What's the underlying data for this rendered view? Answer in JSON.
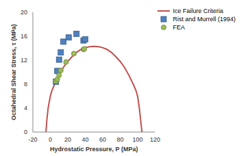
{
  "chart_data": {
    "type": "scatter",
    "x_label": "Hydrostatic Pressure, P (MPa)",
    "y_label": "Octahedral Shear Stress, τ (MPa)",
    "xlim": [
      -20,
      120
    ],
    "xticks": [
      -20,
      0,
      20,
      40,
      60,
      80,
      100,
      120
    ],
    "ylim": [
      0,
      20
    ],
    "yticks": [
      0,
      4,
      8,
      12,
      16,
      20
    ],
    "grid": false,
    "legend": "upper right",
    "series": [
      {
        "name": "Ice Failure Criteria",
        "type": "line",
        "color": "#c0504d",
        "marker": "none",
        "line_style": "solid",
        "x": [
          -5,
          -4,
          -2.5,
          0,
          2,
          5,
          10,
          15,
          20,
          25,
          30,
          35,
          40,
          45,
          50,
          55,
          60,
          65,
          70,
          75,
          80,
          85,
          90,
          95,
          98,
          100,
          102,
          103.5,
          105
        ],
        "values": [
          0,
          2,
          4,
          6,
          7,
          8,
          9.5,
          10.8,
          11.8,
          12.6,
          13.3,
          13.8,
          14.1,
          14.25,
          14.3,
          14.25,
          14.1,
          13.8,
          13.3,
          12.6,
          11.8,
          10.8,
          9.5,
          8,
          7,
          6,
          4,
          2,
          0
        ]
      },
      {
        "name": "Rist and Murrell (1994)",
        "type": "scatter",
        "color": "#4f81bd",
        "marker": "square",
        "x": [
          6.5,
          8,
          10,
          12,
          15,
          21,
          30,
          38,
          40
        ],
        "values": [
          8.4,
          10.2,
          12.1,
          13.3,
          15.1,
          15.8,
          16.4,
          15.3,
          15.5
        ]
      },
      {
        "name": "FEA",
        "type": "scatter",
        "color": "#9bbb59",
        "marker": "circle",
        "x": [
          6.5,
          8,
          10,
          12,
          18,
          27,
          38,
          39
        ],
        "values": [
          8.5,
          8.8,
          9.5,
          10.3,
          11.7,
          13.1,
          13.8,
          13.9
        ]
      }
    ]
  }
}
